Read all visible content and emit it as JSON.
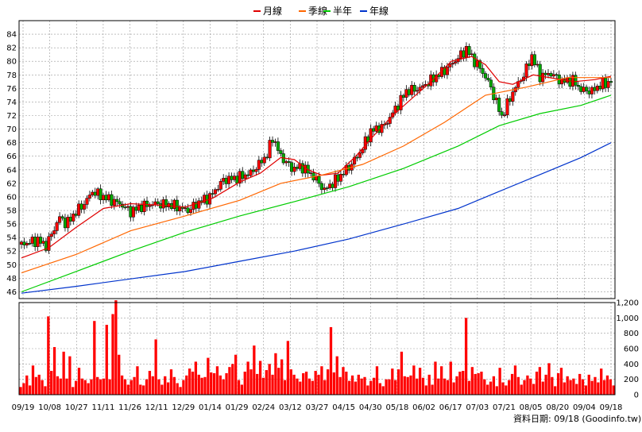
{
  "legend": {
    "items": [
      {
        "label": "月線",
        "color": "#e00000"
      },
      {
        "label": "季線",
        "color": "#ff6600"
      },
      {
        "label": "半年",
        "color": "#00cc00"
      },
      {
        "label": "年線",
        "color": "#0033cc"
      }
    ]
  },
  "footer": {
    "text": "資料日期: 09/18  (Goodinfo.tw)"
  },
  "colors": {
    "up": "#ff0000",
    "down": "#00aa00",
    "volume": "#ff0000",
    "grid": "#999999"
  },
  "chart_data": [
    {
      "type": "candlestick",
      "title": "",
      "ylim": [
        45,
        86
      ],
      "y_ticks": [
        46,
        48,
        50,
        52,
        54,
        56,
        58,
        60,
        62,
        64,
        66,
        68,
        70,
        72,
        74,
        76,
        78,
        80,
        82,
        84
      ],
      "x_tick_labels": [
        "09/19",
        "10/08",
        "10/27",
        "11/11",
        "11/26",
        "12/11",
        "12/29",
        "01/14",
        "01/29",
        "02/24",
        "03/12",
        "03/27",
        "04/15",
        "04/30",
        "05/18",
        "06/02",
        "06/17",
        "07/03",
        "07/21",
        "08/05",
        "08/20",
        "09/04",
        "09/18"
      ],
      "close_path": [
        [
          0,
          53
        ],
        [
          12,
          53.6
        ],
        [
          18,
          52.8
        ],
        [
          28,
          57
        ],
        [
          33,
          56
        ],
        [
          40,
          57.8
        ],
        [
          46,
          59
        ],
        [
          52,
          60.8
        ],
        [
          60,
          60
        ],
        [
          72,
          59
        ],
        [
          80,
          57.8
        ],
        [
          88,
          58.6
        ],
        [
          98,
          59
        ],
        [
          110,
          58.8
        ],
        [
          122,
          58
        ],
        [
          130,
          59.2
        ],
        [
          138,
          60
        ],
        [
          148,
          62.5
        ],
        [
          158,
          62.8
        ],
        [
          168,
          63.5
        ],
        [
          180,
          66.2
        ],
        [
          184,
          68.8
        ],
        [
          190,
          66
        ],
        [
          198,
          64.2
        ],
        [
          206,
          64.4
        ],
        [
          214,
          63
        ],
        [
          222,
          61
        ],
        [
          230,
          62.4
        ],
        [
          240,
          64.4
        ],
        [
          248,
          66.5
        ],
        [
          256,
          69.7
        ],
        [
          266,
          70.5
        ],
        [
          274,
          73
        ],
        [
          282,
          75.6
        ],
        [
          292,
          76
        ],
        [
          302,
          77.5
        ],
        [
          312,
          79
        ],
        [
          320,
          80.5
        ],
        [
          326,
          81.8
        ],
        [
          332,
          80
        ],
        [
          336,
          79
        ],
        [
          342,
          77
        ],
        [
          346,
          75
        ],
        [
          352,
          71.8
        ],
        [
          360,
          75.5
        ],
        [
          368,
          78
        ],
        [
          374,
          80.8
        ],
        [
          380,
          77.8
        ],
        [
          388,
          78.2
        ],
        [
          396,
          77
        ],
        [
          404,
          77.2
        ],
        [
          410,
          75.8
        ],
        [
          418,
          75.6
        ],
        [
          424,
          76.5
        ],
        [
          432,
          77
        ]
      ],
      "close_index_max": 432,
      "series": [
        {
          "name": "月線",
          "color": "#e00000",
          "points": [
            [
              0,
              51
            ],
            [
              20,
              52.5
            ],
            [
              40,
              55.5
            ],
            [
              60,
              58.3
            ],
            [
              80,
              59
            ],
            [
              100,
              58.8
            ],
            [
              120,
              58.5
            ],
            [
              140,
              59.8
            ],
            [
              160,
              62.2
            ],
            [
              175,
              63.5
            ],
            [
              190,
              65.8
            ],
            [
              200,
              65.5
            ],
            [
              210,
              64
            ],
            [
              220,
              63.2
            ],
            [
              232,
              63.5
            ],
            [
              245,
              66
            ],
            [
              258,
              69
            ],
            [
              272,
              72
            ],
            [
              286,
              74.5
            ],
            [
              300,
              77
            ],
            [
              315,
              80
            ],
            [
              330,
              80.7
            ],
            [
              340,
              79.5
            ],
            [
              350,
              77
            ],
            [
              360,
              76.6
            ],
            [
              375,
              78
            ],
            [
              390,
              77.5
            ],
            [
              405,
              77
            ],
            [
              420,
              77.3
            ],
            [
              432,
              77.8
            ]
          ]
        },
        {
          "name": "季線",
          "color": "#ff6600",
          "points": [
            [
              0,
              48.8
            ],
            [
              40,
              51.5
            ],
            [
              80,
              55
            ],
            [
              120,
              57.2
            ],
            [
              160,
              59.5
            ],
            [
              190,
              62
            ],
            [
              220,
              63.2
            ],
            [
              250,
              64.8
            ],
            [
              280,
              67.5
            ],
            [
              310,
              71
            ],
            [
              340,
              75
            ],
            [
              370,
              76.2
            ],
            [
              400,
              77.6
            ],
            [
              432,
              77.6
            ]
          ]
        },
        {
          "name": "半年",
          "color": "#00cc00",
          "points": [
            [
              0,
              46
            ],
            [
              40,
              49
            ],
            [
              80,
              52
            ],
            [
              120,
              54.8
            ],
            [
              160,
              57.2
            ],
            [
              200,
              59.3
            ],
            [
              240,
              61.5
            ],
            [
              280,
              64.2
            ],
            [
              320,
              67.5
            ],
            [
              350,
              70.5
            ],
            [
              380,
              72.3
            ],
            [
              410,
              73.5
            ],
            [
              432,
              75
            ]
          ]
        },
        {
          "name": "年線",
          "color": "#0033cc",
          "points": [
            [
              0,
              45.8
            ],
            [
              40,
              46.8
            ],
            [
              80,
              47.9
            ],
            [
              120,
              49
            ],
            [
              160,
              50.5
            ],
            [
              200,
              52
            ],
            [
              240,
              53.8
            ],
            [
              280,
              56
            ],
            [
              320,
              58.3
            ],
            [
              350,
              60.8
            ],
            [
              380,
              63.3
            ],
            [
              410,
              65.8
            ],
            [
              432,
              68
            ]
          ]
        }
      ]
    },
    {
      "type": "bar",
      "title": "",
      "ylim": [
        0,
        1200
      ],
      "y_ticks": [
        0,
        200,
        400,
        600,
        800,
        1000,
        1200
      ],
      "y_tick_labels": [
        "0",
        "200",
        "400",
        "600",
        "800",
        "1,000",
        "1,200"
      ],
      "values": [
        100,
        150,
        250,
        120,
        380,
        230,
        260,
        190,
        110,
        1020,
        310,
        620,
        240,
        210,
        560,
        210,
        500,
        100,
        180,
        350,
        210,
        190,
        150,
        200,
        960,
        230,
        200,
        210,
        910,
        200,
        1050,
        1230,
        520,
        250,
        200,
        130,
        190,
        230,
        370,
        130,
        120,
        200,
        310,
        240,
        720,
        200,
        130,
        240,
        160,
        330,
        230,
        150,
        100,
        190,
        250,
        340,
        300,
        430,
        260,
        220,
        230,
        480,
        290,
        280,
        370,
        250,
        200,
        280,
        360,
        400,
        520,
        190,
        130,
        300,
        430,
        330,
        640,
        270,
        440,
        220,
        320,
        400,
        260,
        540,
        350,
        460,
        190,
        700,
        330,
        260,
        210,
        170,
        280,
        300,
        210,
        180,
        310,
        260,
        370,
        190,
        330,
        880,
        290,
        500,
        230,
        360,
        300,
        180,
        250,
        170,
        260,
        210,
        230,
        120,
        180,
        220,
        370,
        150,
        110,
        200,
        200,
        340,
        190,
        330,
        560,
        240,
        230,
        250,
        380,
        210,
        350,
        220,
        120,
        260,
        130,
        430,
        210,
        370,
        210,
        190,
        430,
        160,
        240,
        300,
        310,
        1000,
        180,
        360,
        270,
        280,
        300,
        200,
        130,
        170,
        240,
        110,
        350,
        160,
        120,
        190,
        270,
        380,
        230,
        130,
        190,
        250,
        210,
        140,
        300,
        360,
        170,
        260,
        410,
        230,
        110,
        280,
        350,
        160,
        240,
        190,
        210,
        140,
        270,
        200,
        120,
        260,
        180,
        230,
        160,
        340,
        190,
        250,
        200,
        120
      ]
    }
  ]
}
